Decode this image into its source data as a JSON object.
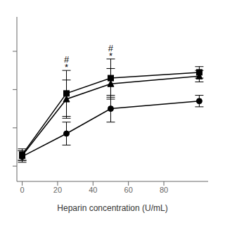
{
  "chart_data": {
    "type": "line",
    "x_label": "Heparin concentration (U/mL)",
    "x": [
      0,
      25,
      50,
      100
    ],
    "series": [
      {
        "color": "#000000",
        "marker": "square",
        "line_style": "solid",
        "values": [
          6,
          38,
          46,
          49
        ],
        "yerr": [
          3,
          12,
          10,
          3
        ]
      },
      {
        "color": "#000000",
        "marker": "triangle",
        "line_style": "solid",
        "values": [
          5.5,
          35,
          43,
          47
        ],
        "yerr": [
          2.5,
          10,
          8,
          3
        ]
      },
      {
        "color": "#000000",
        "marker": "circle",
        "line_style": "solid",
        "values": [
          5,
          17,
          30,
          34
        ],
        "yerr": [
          3,
          6,
          7,
          3
        ]
      }
    ],
    "annotations": [
      {
        "text": "#",
        "x": 25,
        "y": 54
      },
      {
        "text": "*",
        "x": 25,
        "y": 50
      },
      {
        "text": "#",
        "x": 50,
        "y": 60
      },
      {
        "text": "*",
        "x": 50,
        "y": 56
      }
    ],
    "xlim": [
      -3,
      105
    ],
    "ylim": [
      -8,
      78
    ],
    "xticks": [
      0,
      20,
      40,
      60,
      80
    ],
    "yticks": [
      0,
      20,
      40,
      60
    ],
    "grid": false,
    "tick_labels": "x"
  }
}
